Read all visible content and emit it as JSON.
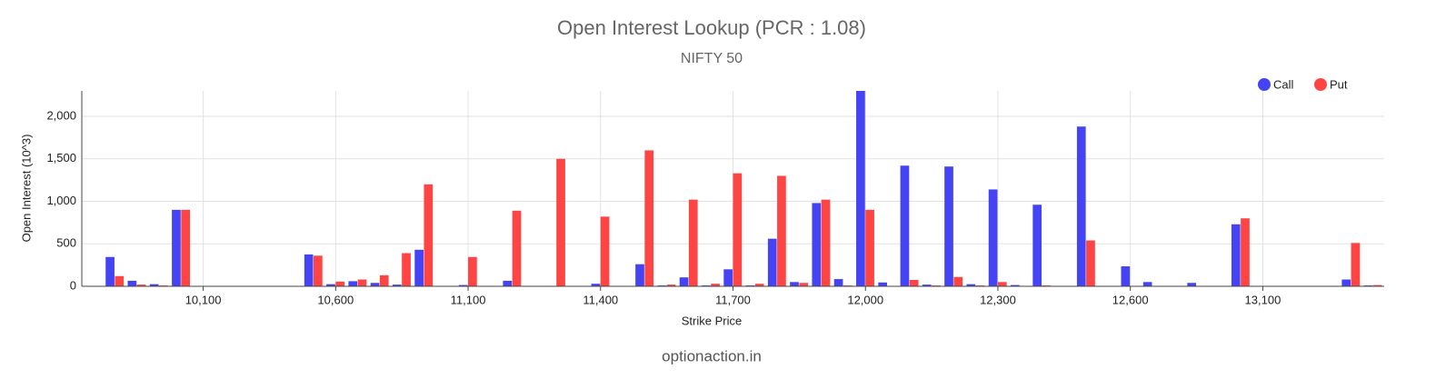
{
  "chart_data": {
    "type": "bar",
    "title": "Open Interest Lookup (PCR : 1.08)",
    "subtitle": "NIFTY 50",
    "x_label": "Strike Price",
    "y_label": "Open Interest (10^3)",
    "footer": "optionaction.in",
    "categories": [
      null,
      null,
      null,
      null,
      null,
      "10,100",
      null,
      null,
      null,
      null,
      null,
      "10,600",
      null,
      null,
      null,
      null,
      null,
      "11,100",
      null,
      null,
      null,
      null,
      null,
      "11,400",
      null,
      null,
      null,
      null,
      null,
      "11,700",
      null,
      null,
      null,
      null,
      null,
      "12,000",
      null,
      null,
      null,
      null,
      null,
      "12,300",
      null,
      null,
      null,
      null,
      null,
      "12,600",
      null,
      null,
      null,
      null,
      null,
      "13,100",
      null,
      null,
      null,
      null,
      null
    ],
    "series": [
      {
        "name": "Call",
        "color": "#4444f5",
        "values": [
          5,
          345,
          65,
          25,
          900,
          5,
          5,
          5,
          5,
          5,
          375,
          25,
          60,
          40,
          20,
          430,
          5,
          15,
          5,
          65,
          5,
          5,
          5,
          30,
          5,
          260,
          10,
          105,
          10,
          200,
          10,
          560,
          50,
          980,
          85,
          2300,
          45,
          1420,
          20,
          1410,
          25,
          1140,
          15,
          960,
          5,
          1880,
          5,
          235,
          50,
          5,
          40,
          5,
          730,
          5,
          5,
          5,
          5,
          80,
          10
        ]
      },
      {
        "name": "Put",
        "color": "#ff4444",
        "values": [
          5,
          120,
          20,
          10,
          900,
          5,
          5,
          5,
          5,
          5,
          360,
          55,
          80,
          130,
          390,
          1200,
          5,
          345,
          5,
          890,
          5,
          1500,
          5,
          820,
          5,
          1600,
          20,
          1020,
          30,
          1330,
          30,
          1300,
          40,
          1020,
          10,
          900,
          5,
          75,
          10,
          110,
          10,
          50,
          5,
          10,
          5,
          540,
          5,
          5,
          5,
          5,
          5,
          5,
          800,
          5,
          5,
          5,
          5,
          510,
          15
        ]
      }
    ],
    "ylim": [
      0,
      2300
    ],
    "yticks": [
      0,
      500,
      {
        "value": 1000,
        "label": "1,000"
      },
      {
        "value": 1500,
        "label": "1,500"
      },
      {
        "value": 2000,
        "label": "2,000"
      }
    ],
    "grid": true,
    "legend": "top-right"
  }
}
